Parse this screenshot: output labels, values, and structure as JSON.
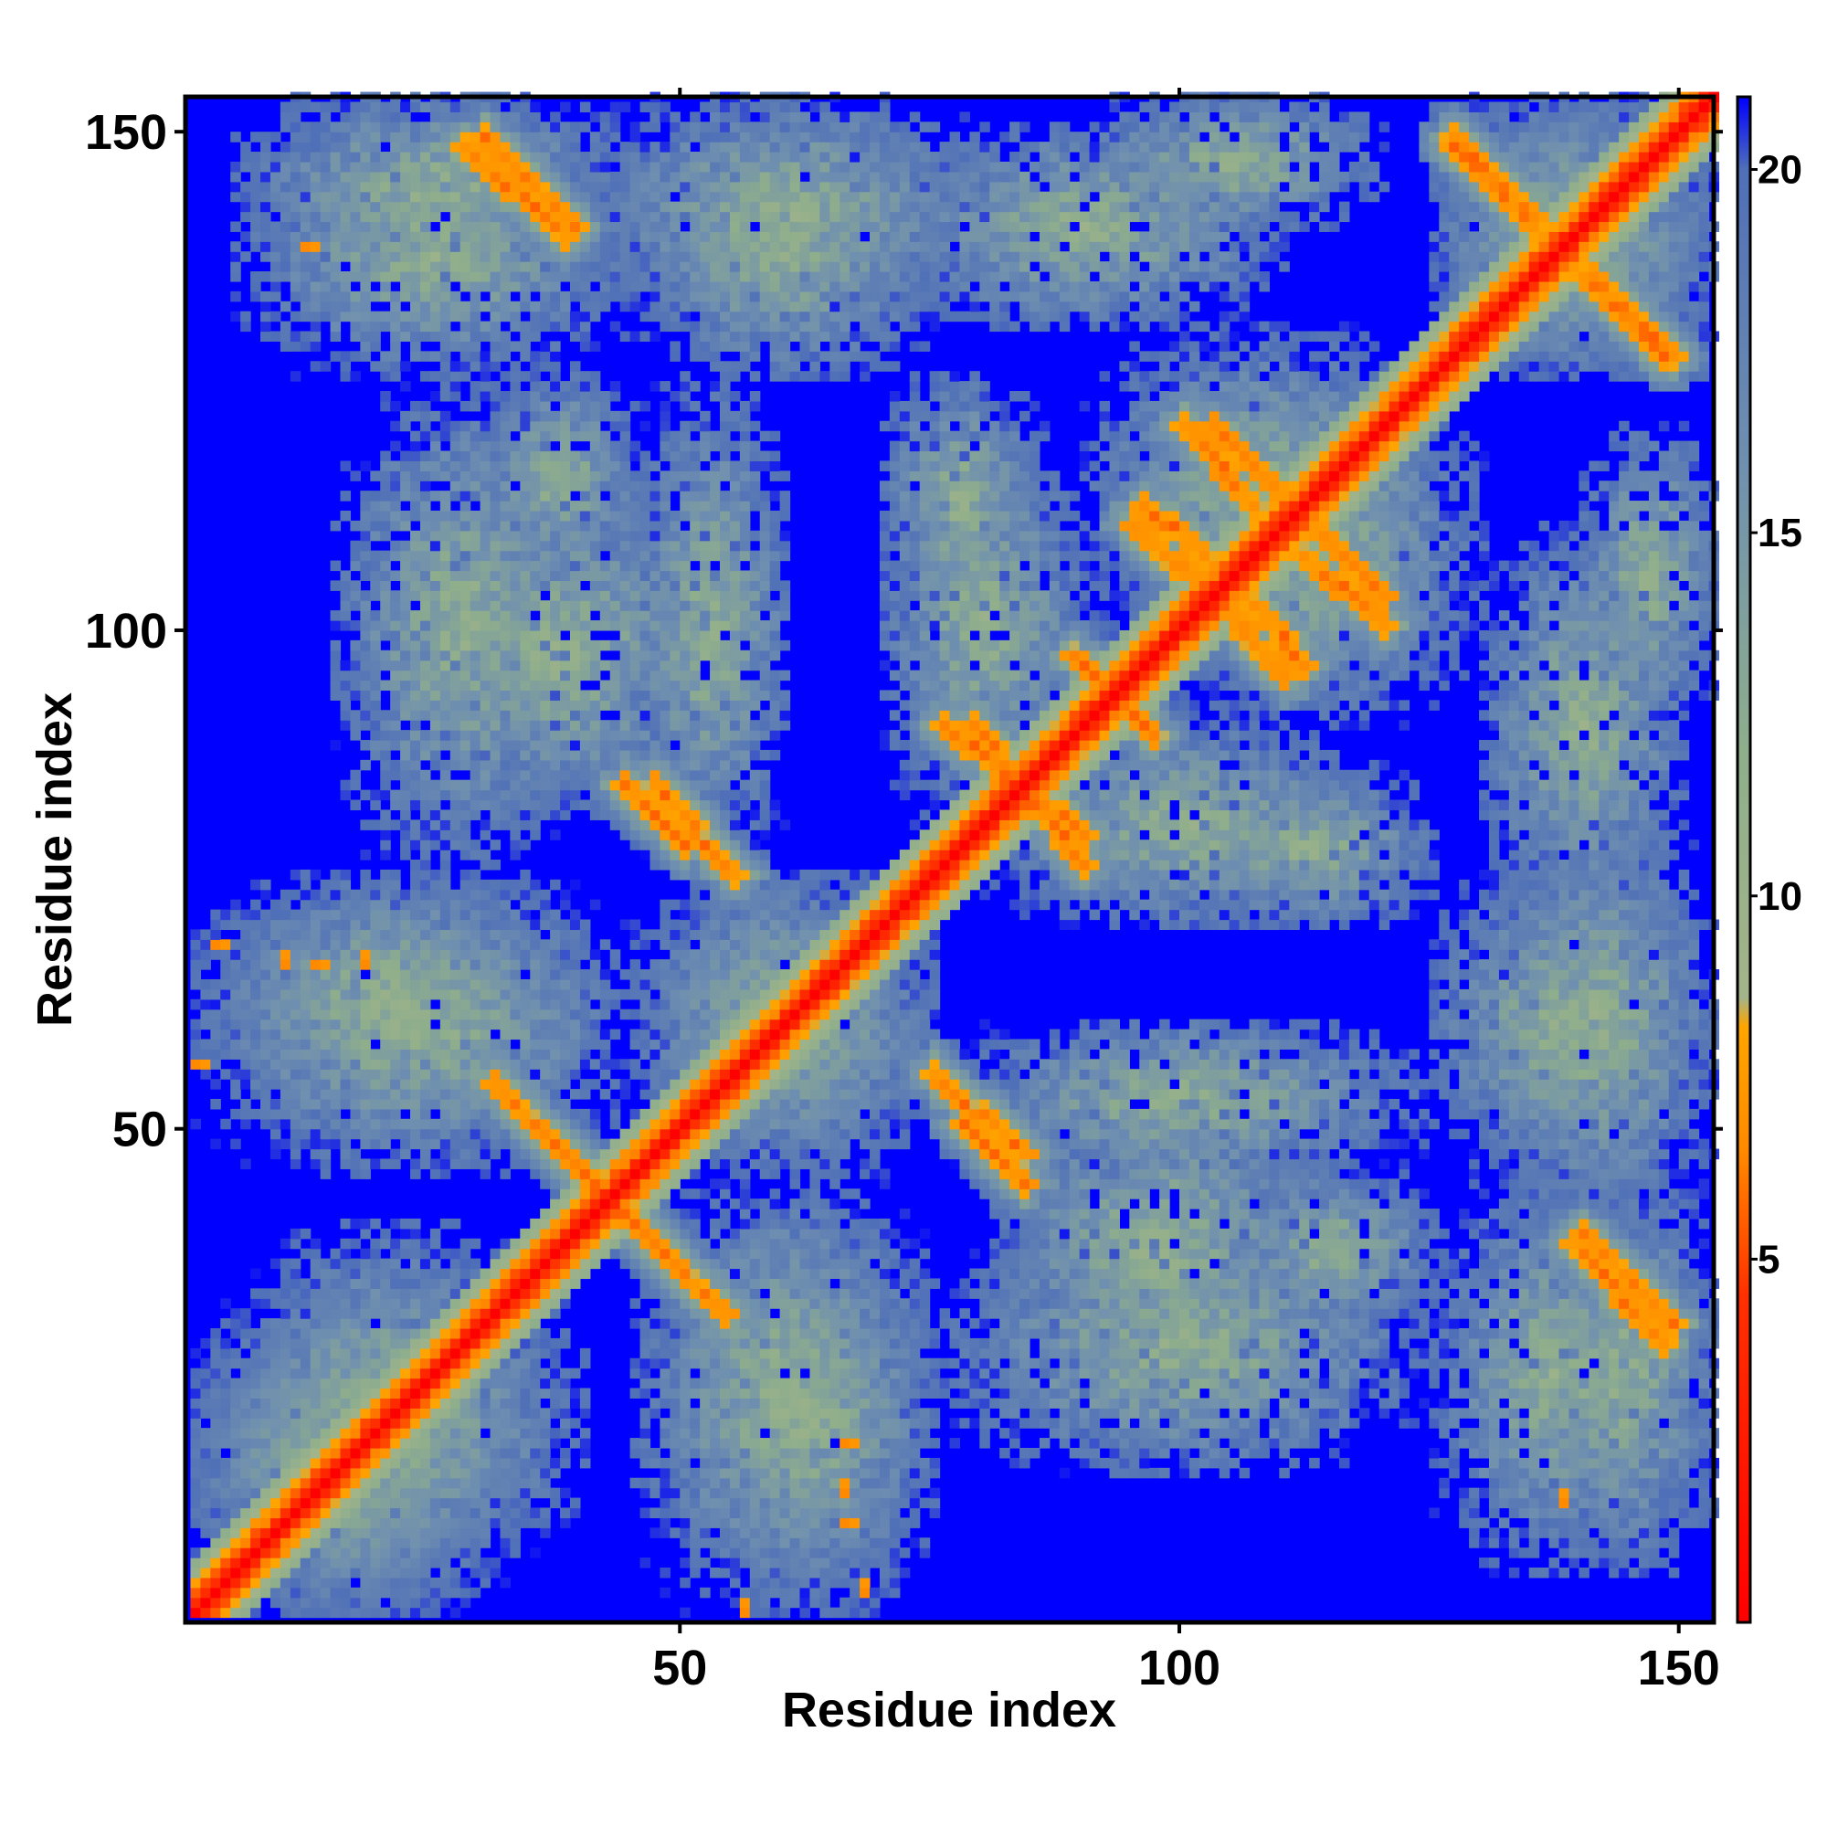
{
  "chart_data": {
    "type": "heatmap",
    "title": "",
    "xlabel": "Residue index",
    "ylabel": "Residue index",
    "xlim": [
      1,
      153
    ],
    "ylim": [
      1,
      153
    ],
    "x_ticks": [
      50,
      100,
      150
    ],
    "y_ticks": [
      50,
      100,
      150
    ],
    "colorbar": {
      "ticks": [
        5,
        10,
        15,
        20
      ],
      "range": [
        0,
        21
      ],
      "stops": [
        {
          "value": 0,
          "color": "#ff0000"
        },
        {
          "value": 4.5,
          "color": "#ff3000"
        },
        {
          "value": 6.5,
          "color": "#ff8a00"
        },
        {
          "value": 8.2,
          "color": "#ffa500"
        },
        {
          "value": 8.6,
          "color": "#a3b48a"
        },
        {
          "value": 12,
          "color": "#8fae8c"
        },
        {
          "value": 16,
          "color": "#6f8fb0"
        },
        {
          "value": 20,
          "color": "#4f6fb8"
        },
        {
          "value": 21,
          "color": "#0000ff"
        }
      ]
    },
    "no_contact_color": "#0000ff",
    "symmetric": true,
    "contact_features_upper_triangle": [
      {
        "kind": "diagonal",
        "from": 1,
        "to": 153
      },
      {
        "kind": "antiparallel",
        "x_start": 38,
        "y_start": 47,
        "x_end": 50,
        "y_end": 35
      },
      {
        "kind": "antiparallel",
        "x_start": 30,
        "y_start": 149,
        "x_end": 39,
        "y_end": 140
      },
      {
        "kind": "antiparallel",
        "x_start": 44,
        "y_start": 84,
        "x_end": 50,
        "y_end": 78
      },
      {
        "kind": "antiparallel",
        "x_start": 31,
        "y_start": 54,
        "x_end": 38,
        "y_end": 47
      },
      {
        "kind": "antiparallel",
        "x_start": 76,
        "y_start": 90,
        "x_end": 90,
        "y_end": 79
      },
      {
        "kind": "antiparallel",
        "x_start": 75,
        "y_start": 55,
        "x_end": 84,
        "y_end": 47
      },
      {
        "kind": "antiparallel",
        "x_start": 102,
        "y_start": 104,
        "x_end": 110,
        "y_end": 95
      },
      {
        "kind": "antiparallel",
        "x_start": 103,
        "y_start": 120,
        "x_end": 111,
        "y_end": 112
      },
      {
        "kind": "antiparallel",
        "x_start": 96,
        "y_start": 112,
        "x_end": 102,
        "y_end": 107
      },
      {
        "kind": "antiparallel",
        "x_start": 127,
        "y_start": 149,
        "x_end": 135,
        "y_end": 141
      },
      {
        "kind": "antiparallel",
        "x_start": 140,
        "y_start": 135,
        "x_end": 148,
        "y_end": 127
      },
      {
        "kind": "antiparallel",
        "x_start": 139,
        "y_start": 38,
        "x_end": 148,
        "y_end": 28
      },
      {
        "kind": "antiparallel",
        "x_start": 89,
        "y_start": 97,
        "x_end": 96,
        "y_end": 90
      },
      {
        "kind": "antiparallel",
        "x_start": 112,
        "y_start": 107,
        "x_end": 120,
        "y_end": 100
      },
      {
        "kind": "spot",
        "x": 12,
        "y": 138
      },
      {
        "kind": "spot",
        "x": 13,
        "y": 66
      },
      {
        "kind": "spot",
        "x": 3,
        "y": 68
      },
      {
        "kind": "spot",
        "x": 66,
        "y": 18
      },
      {
        "kind": "spot",
        "x": 66,
        "y": 10
      },
      {
        "kind": "spot",
        "x": 1,
        "y": 56
      }
    ],
    "domain_patches": [
      {
        "x": [
          1,
          30
        ],
        "y": [
          1,
          30
        ]
      },
      {
        "x": [
          45,
          75
        ],
        "y": [
          45,
          75
        ]
      },
      {
        "x": [
          90,
          125
        ],
        "y": [
          95,
          130
        ]
      },
      {
        "x": [
          125,
          153
        ],
        "y": [
          125,
          153
        ]
      },
      {
        "x": [
          5,
          45
        ],
        "y": [
          135,
          153
        ]
      },
      {
        "x": [
          40,
          80
        ],
        "y": [
          130,
          153
        ]
      },
      {
        "x": [
          90,
          120
        ],
        "y": [
          140,
          153
        ]
      },
      {
        "x": [
          15,
          40
        ],
        "y": [
          75,
          125
        ]
      },
      {
        "x": [
          45,
          60
        ],
        "y": [
          75,
          125
        ]
      },
      {
        "x": [
          70,
          90
        ],
        "y": [
          80,
          120
        ]
      },
      {
        "x": [
          1,
          40
        ],
        "y": [
          50,
          75
        ]
      },
      {
        "x": [
          45,
          75
        ],
        "y": [
          1,
          45
        ]
      },
      {
        "x": [
          5,
          35
        ],
        "y": [
          1,
          40
        ]
      },
      {
        "x": [
          80,
          115
        ],
        "y": [
          20,
          55
        ]
      },
      {
        "x": [
          125,
          150
        ],
        "y": [
          5,
          45
        ]
      },
      {
        "x": [
          125,
          150
        ],
        "y": [
          45,
          75
        ]
      },
      {
        "x": [
          130,
          150
        ],
        "y": [
          70,
          110
        ]
      },
      {
        "x": [
          105,
          125
        ],
        "y": [
          30,
          45
        ]
      },
      {
        "x": [
          100,
          125
        ],
        "y": [
          70,
          85
        ]
      }
    ]
  }
}
